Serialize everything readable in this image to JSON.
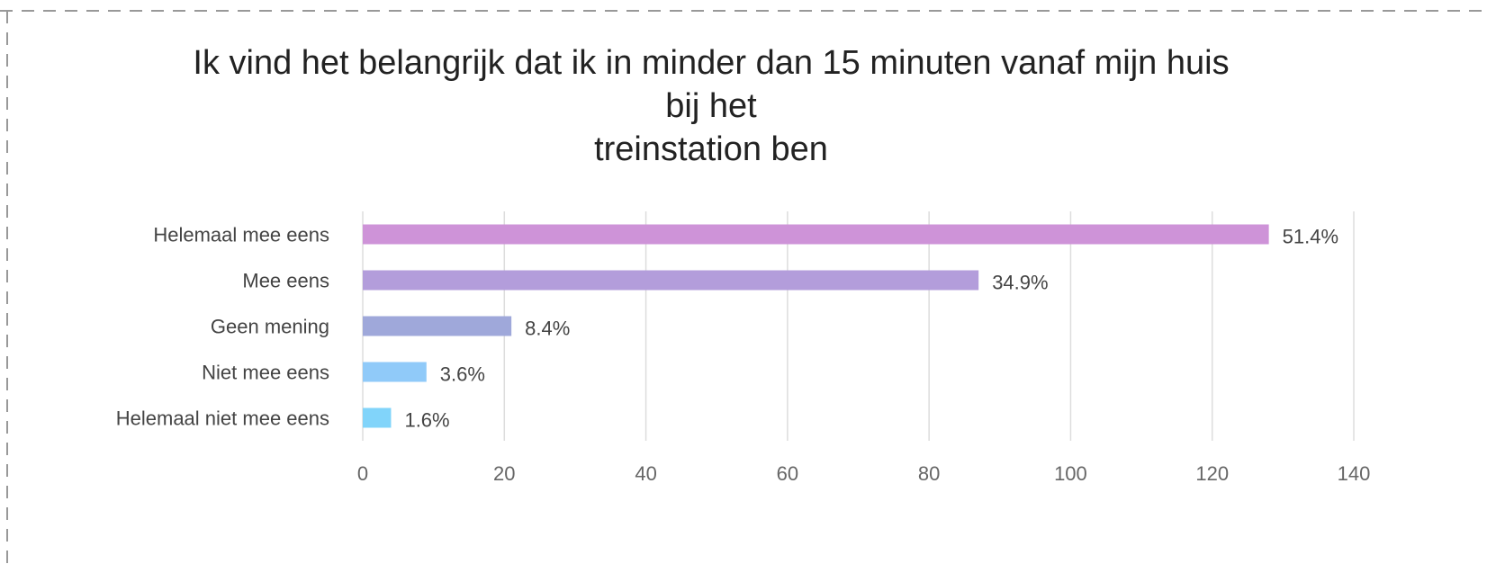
{
  "chart_data": {
    "type": "hbar",
    "title": [
      "Ik vind het belangrijk dat ik in minder dan 15 minuten vanaf mijn huis",
      "bij het",
      "treinstation ben"
    ],
    "categories": [
      "Helemaal mee eens",
      "Mee eens",
      "Geen mening",
      "Niet mee eens",
      "Helemaal niet mee eens"
    ],
    "values": [
      128,
      87,
      21,
      9,
      4
    ],
    "value_labels": [
      "51.4%",
      "34.9%",
      "8.4%",
      "3.6%",
      "1.6%"
    ],
    "colors": [
      "#ce93d8",
      "#b39ddb",
      "#9fa8da",
      "#90caf9",
      "#81d4fa"
    ],
    "xlim": [
      0,
      140
    ],
    "xticks": [
      0,
      20,
      40,
      60,
      80,
      100,
      120,
      140
    ],
    "grid": true
  }
}
